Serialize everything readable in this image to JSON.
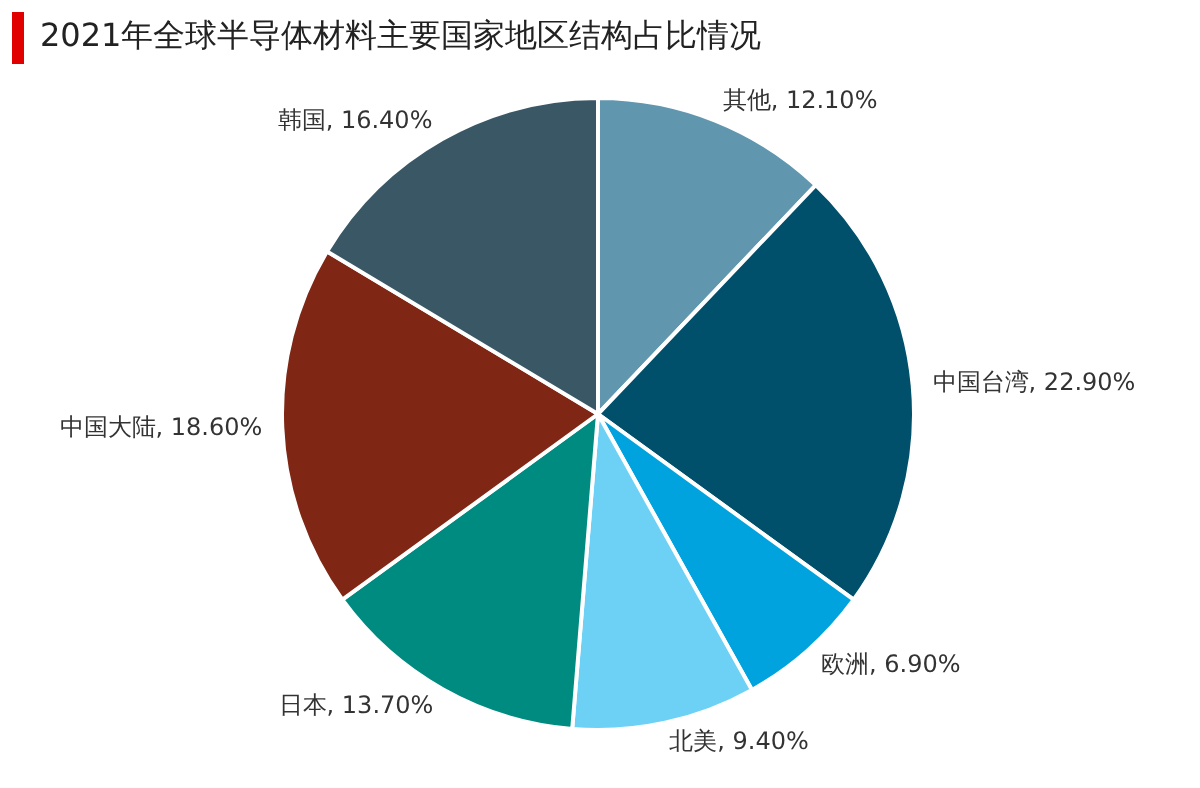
{
  "chart_data": {
    "type": "pie",
    "title": "2021年全球半导体材料主要国家地区结构占比情况",
    "categories": [
      "其他",
      "中国台湾",
      "欧洲",
      "北美",
      "日本",
      "中国大陆",
      "韩国"
    ],
    "values": [
      12.1,
      22.9,
      6.9,
      9.4,
      13.7,
      18.6,
      16.4
    ],
    "value_labels": [
      "12.10%",
      "22.90%",
      "6.90%",
      "9.40%",
      "13.70%",
      "18.60%",
      "16.40%"
    ],
    "colors": [
      "#6096ae",
      "#004f6b",
      "#00a3dd",
      "#6dd0f5",
      "#008b80",
      "#7f2714",
      "#3a5766"
    ],
    "legend": false
  }
}
